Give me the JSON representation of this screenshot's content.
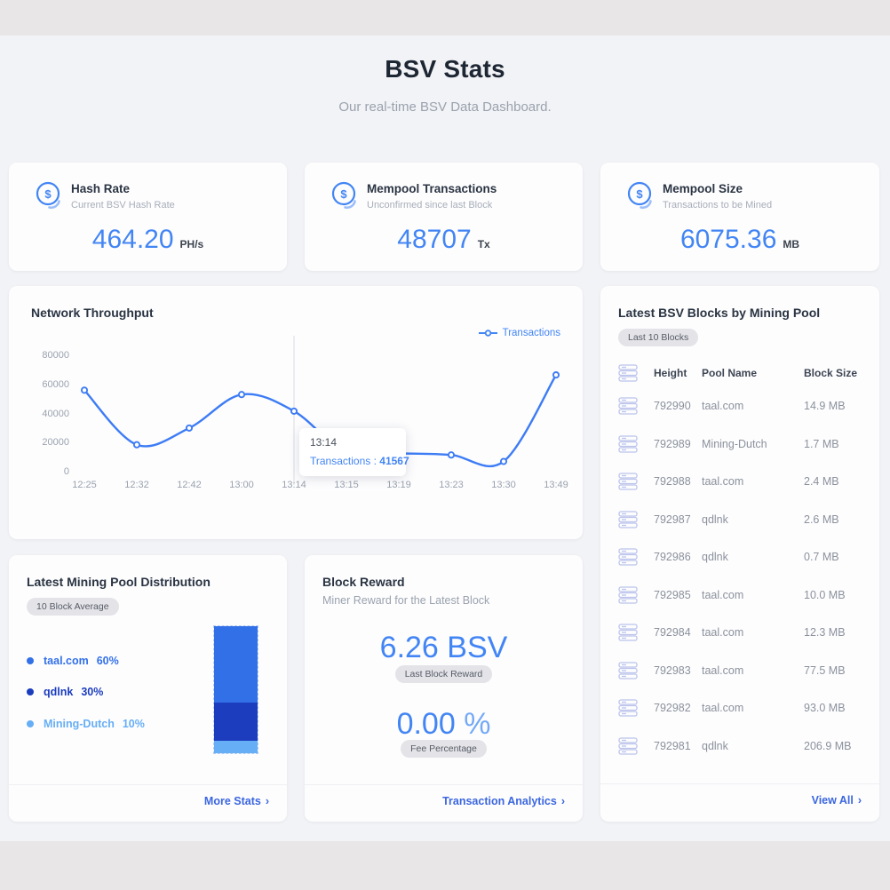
{
  "page": {
    "title": "BSV Stats",
    "subtitle": "Our real-time BSV Data Dashboard."
  },
  "icons": {
    "chevron": "›"
  },
  "colors": {
    "accent": "#4285F4",
    "link": "#3B66DF",
    "muted": "#9aa2ae"
  },
  "stat_cards": [
    {
      "icon": "coin-dollar-icon",
      "title": "Hash Rate",
      "subtitle": "Current BSV Hash Rate",
      "value": "464.20",
      "unit": "PH/s"
    },
    {
      "icon": "coin-dollar-icon",
      "title": "Mempool Transactions",
      "subtitle": "Unconfirmed since last Block",
      "value": "48707",
      "unit": "Tx"
    },
    {
      "icon": "coin-dollar-icon",
      "title": "Mempool Size",
      "subtitle": "Transactions to be Mined",
      "value": "6075.36",
      "unit": "MB"
    }
  ],
  "throughput": {
    "title": "Network Throughput",
    "legend": "Transactions",
    "tooltip": {
      "time": "13:14",
      "label": "Transactions",
      "separator": " : ",
      "value": "41567"
    }
  },
  "chart_data": [
    {
      "type": "line",
      "title": "Network Throughput",
      "x": [
        "12:25",
        "12:32",
        "12:42",
        "13:00",
        "13:14",
        "13:15",
        "13:19",
        "13:23",
        "13:30",
        "13:49"
      ],
      "series": [
        {
          "name": "Transactions",
          "color": "#3D7CF5",
          "values": [
            56000,
            18500,
            30000,
            53000,
            41567,
            13000,
            12500,
            11500,
            7000,
            66500
          ]
        }
      ],
      "ylim": [
        0,
        80000
      ],
      "yticks": [
        80000,
        60000,
        40000,
        20000,
        0
      ],
      "grid": false,
      "legend_position": "top-right",
      "highlight_x": "13:14",
      "tooltip_point": {
        "x": "13:14",
        "label": "Transactions",
        "value": 41567
      }
    },
    {
      "type": "bar",
      "subtype": "stacked-vertical",
      "title": "Latest Mining Pool Distribution",
      "period": "10 Block Average",
      "unit": "%",
      "series": [
        {
          "name": "taal.com",
          "value": 60,
          "color": "#3270E8"
        },
        {
          "name": "qdlnk",
          "value": 30,
          "color": "#1B3DBE"
        },
        {
          "name": "Mining-Dutch",
          "value": 10,
          "color": "#66AEF5"
        }
      ]
    }
  ],
  "blocks_panel": {
    "title": "Latest BSV Blocks by Mining Pool",
    "badge": "Last 10 Blocks",
    "icon": "database-icon",
    "columns": [
      "Height",
      "Pool Name",
      "Block Size"
    ],
    "rows": [
      {
        "height": "792990",
        "pool": "taal.com",
        "size": "14.9 MB"
      },
      {
        "height": "792989",
        "pool": "Mining-Dutch",
        "size": "1.7 MB"
      },
      {
        "height": "792988",
        "pool": "taal.com",
        "size": "2.4 MB"
      },
      {
        "height": "792987",
        "pool": "qdlnk",
        "size": "2.6 MB"
      },
      {
        "height": "792986",
        "pool": "qdlnk",
        "size": "0.7 MB"
      },
      {
        "height": "792985",
        "pool": "taal.com",
        "size": "10.0 MB"
      },
      {
        "height": "792984",
        "pool": "taal.com",
        "size": "12.3 MB"
      },
      {
        "height": "792983",
        "pool": "taal.com",
        "size": "77.5 MB"
      },
      {
        "height": "792982",
        "pool": "taal.com",
        "size": "93.0 MB"
      },
      {
        "height": "792981",
        "pool": "qdlnk",
        "size": "206.9 MB"
      }
    ],
    "footer_link": "View All"
  },
  "distribution": {
    "title": "Latest Mining Pool Distribution",
    "badge": "10 Block Average",
    "footer_link": "More Stats"
  },
  "block_reward": {
    "title": "Block Reward",
    "subtitle": "Miner Reward for the Latest Block",
    "reward_value": "6.26",
    "reward_unit": "BSV",
    "reward_badge": "Last Block Reward",
    "fee_value": "0.00",
    "fee_unit": "%",
    "fee_badge": "Fee Percentage",
    "footer_link": "Transaction Analytics"
  }
}
